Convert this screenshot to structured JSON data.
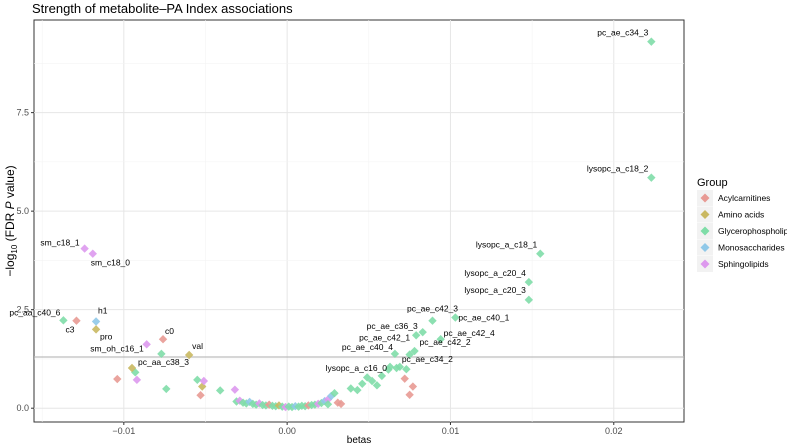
{
  "chart_data": {
    "type": "scatter",
    "title": "Strength of metabolite–PA Index associations",
    "xlabel": "betas",
    "ylabel_prefix": "−log",
    "ylabel_sub": "10",
    "ylabel_mid": " (FDR ",
    "ylabel_italic": "P",
    "ylabel_suffix": " value)",
    "xlim": [
      -0.0155,
      0.0243
    ],
    "ylim": [
      -0.35,
      9.85
    ],
    "x_ticks": [
      -0.01,
      0.0,
      0.01,
      0.02
    ],
    "x_tick_labels": [
      "−0.01",
      "0.00",
      "0.01",
      "0.02"
    ],
    "y_ticks": [
      0.0,
      2.5,
      5.0,
      7.5
    ],
    "y_tick_labels": [
      "0.0",
      "2.5",
      "5.0",
      "7.5"
    ],
    "threshold_y": 1.3,
    "grid": true,
    "legend": {
      "title": "Group",
      "position": "right",
      "entries": [
        {
          "name": "Acylcarnitines",
          "color": "#E89A94"
        },
        {
          "name": "Amino acids",
          "color": "#C9B860"
        },
        {
          "name": "Glycerophospholipids",
          "color": "#7FDDA8"
        },
        {
          "name": "Monosaccharides",
          "color": "#8FC8E8"
        },
        {
          "name": "Sphingolipids",
          "color": "#DD99EE"
        }
      ]
    },
    "labeled_points": [
      {
        "label": "pc_ae_c34_3",
        "x": 0.0223,
        "y": 9.3,
        "group": "Glycerophospholipids"
      },
      {
        "label": "lysopc_a_c18_2",
        "x": 0.0223,
        "y": 5.85,
        "group": "Glycerophospholipids"
      },
      {
        "label": "lysopc_a_c18_1",
        "x": 0.0155,
        "y": 3.92,
        "group": "Glycerophospholipids"
      },
      {
        "label": "lysopc_a_c20_4",
        "x": 0.0148,
        "y": 3.2,
        "group": "Glycerophospholipids"
      },
      {
        "label": "lysopc_a_c20_3",
        "x": 0.0148,
        "y": 2.75,
        "group": "Glycerophospholipids"
      },
      {
        "label": "pc_ae_c42_3",
        "x": 0.0089,
        "y": 2.22,
        "group": "Glycerophospholipids"
      },
      {
        "label": "pc_ae_c40_1",
        "x": 0.0103,
        "y": 2.3,
        "group": "Glycerophospholipids"
      },
      {
        "label": "pc_ae_c36_3",
        "x": 0.0083,
        "y": 1.93,
        "group": "Glycerophospholipids"
      },
      {
        "label": "pc_ae_c42_4",
        "x": 0.0094,
        "y": 1.75,
        "group": "Glycerophospholipids"
      },
      {
        "label": "pc_ae_c42_1",
        "x": 0.0079,
        "y": 1.85,
        "group": "Glycerophospholipids"
      },
      {
        "label": "pc_ae_c42_2",
        "x": 0.0078,
        "y": 1.45,
        "group": "Glycerophospholipids"
      },
      {
        "label": "pc_ae_c40_4",
        "x": 0.0066,
        "y": 1.38,
        "group": "Glycerophospholipids"
      },
      {
        "label": "lysopc_a_c16_0",
        "x": 0.0063,
        "y": 1.05,
        "group": "Glycerophospholipids"
      },
      {
        "label": "pc_ae_c34_2",
        "x": 0.0069,
        "y": 1.05,
        "group": "Glycerophospholipids"
      },
      {
        "label": "sm_c18_1",
        "x": -0.0124,
        "y": 4.05,
        "group": "Sphingolipids"
      },
      {
        "label": "sm_c18_0",
        "x": -0.0119,
        "y": 3.92,
        "group": "Sphingolipids"
      },
      {
        "label": "pc_aa_c40_6",
        "x": -0.0137,
        "y": 2.23,
        "group": "Glycerophospholipids"
      },
      {
        "label": "h1",
        "x": -0.0117,
        "y": 2.2,
        "group": "Monosaccharides"
      },
      {
        "label": "c3",
        "x": -0.0129,
        "y": 2.22,
        "group": "Acylcarnitines"
      },
      {
        "label": "pro",
        "x": -0.0117,
        "y": 2.0,
        "group": "Amino acids"
      },
      {
        "label": "c0",
        "x": -0.0076,
        "y": 1.75,
        "group": "Acylcarnitines"
      },
      {
        "label": "sm_oh_c16_1",
        "x": -0.0086,
        "y": 1.62,
        "group": "Sphingolipids"
      },
      {
        "label": "val",
        "x": -0.006,
        "y": 1.35,
        "group": "Amino acids"
      },
      {
        "label": "pc_aa_c38_3",
        "x": -0.0095,
        "y": 1.02,
        "group": "Amino acids"
      }
    ],
    "points": [
      {
        "x": -0.0077,
        "y": 1.38,
        "group": "Glycerophospholipids"
      },
      {
        "x": -0.0104,
        "y": 0.74,
        "group": "Acylcarnitines"
      },
      {
        "x": -0.0092,
        "y": 0.72,
        "group": "Sphingolipids"
      },
      {
        "x": -0.0093,
        "y": 0.91,
        "group": "Glycerophospholipids"
      },
      {
        "x": -0.0074,
        "y": 0.49,
        "group": "Glycerophospholipids"
      },
      {
        "x": -0.0055,
        "y": 0.72,
        "group": "Glycerophospholipids"
      },
      {
        "x": -0.0052,
        "y": 0.55,
        "group": "Amino acids"
      },
      {
        "x": -0.0051,
        "y": 0.69,
        "group": "Sphingolipids"
      },
      {
        "x": -0.0053,
        "y": 0.33,
        "group": "Acylcarnitines"
      },
      {
        "x": -0.0041,
        "y": 0.45,
        "group": "Glycerophospholipids"
      },
      {
        "x": -0.0032,
        "y": 0.47,
        "group": "Sphingolipids"
      },
      {
        "x": -0.0031,
        "y": 0.17,
        "group": "Glycerophospholipids"
      },
      {
        "x": -0.0029,
        "y": 0.19,
        "group": "Sphingolipids"
      },
      {
        "x": -0.0027,
        "y": 0.14,
        "group": "Glycerophospholipids"
      },
      {
        "x": -0.0025,
        "y": 0.12,
        "group": "Glycerophospholipids"
      },
      {
        "x": -0.0023,
        "y": 0.16,
        "group": "Monosaccharides"
      },
      {
        "x": -0.0021,
        "y": 0.11,
        "group": "Glycerophospholipids"
      },
      {
        "x": -0.0019,
        "y": 0.09,
        "group": "Glycerophospholipids"
      },
      {
        "x": -0.0017,
        "y": 0.12,
        "group": "Sphingolipids"
      },
      {
        "x": -0.0015,
        "y": 0.08,
        "group": "Glycerophospholipids"
      },
      {
        "x": -0.0013,
        "y": 0.07,
        "group": "Glycerophospholipids"
      },
      {
        "x": -0.0011,
        "y": 0.09,
        "group": "Acylcarnitines"
      },
      {
        "x": -0.0009,
        "y": 0.06,
        "group": "Glycerophospholipids"
      },
      {
        "x": -0.0007,
        "y": 0.05,
        "group": "Glycerophospholipids"
      },
      {
        "x": -0.0005,
        "y": 0.07,
        "group": "Amino acids"
      },
      {
        "x": -0.0003,
        "y": 0.04,
        "group": "Glycerophospholipids"
      },
      {
        "x": -0.0001,
        "y": 0.03,
        "group": "Sphingolipids"
      },
      {
        "x": 0.0001,
        "y": 0.04,
        "group": "Glycerophospholipids"
      },
      {
        "x": 0.0003,
        "y": 0.03,
        "group": "Glycerophospholipids"
      },
      {
        "x": 0.0005,
        "y": 0.05,
        "group": "Monosaccharides"
      },
      {
        "x": 0.0007,
        "y": 0.04,
        "group": "Glycerophospholipids"
      },
      {
        "x": 0.0009,
        "y": 0.06,
        "group": "Glycerophospholipids"
      },
      {
        "x": 0.0011,
        "y": 0.05,
        "group": "Glycerophospholipids"
      },
      {
        "x": 0.0013,
        "y": 0.07,
        "group": "Acylcarnitines"
      },
      {
        "x": 0.0015,
        "y": 0.08,
        "group": "Glycerophospholipids"
      },
      {
        "x": 0.0017,
        "y": 0.09,
        "group": "Glycerophospholipids"
      },
      {
        "x": 0.0019,
        "y": 0.11,
        "group": "Sphingolipids"
      },
      {
        "x": 0.0021,
        "y": 0.13,
        "group": "Glycerophospholipids"
      },
      {
        "x": 0.0023,
        "y": 0.18,
        "group": "Monosaccharides"
      },
      {
        "x": 0.0025,
        "y": 0.22,
        "group": "Sphingolipids"
      },
      {
        "x": 0.0027,
        "y": 0.31,
        "group": "Monosaccharides"
      },
      {
        "x": 0.0029,
        "y": 0.38,
        "group": "Glycerophospholipids"
      },
      {
        "x": 0.0031,
        "y": 0.14,
        "group": "Acylcarnitines"
      },
      {
        "x": 0.0033,
        "y": 0.11,
        "group": "Acylcarnitines"
      },
      {
        "x": 0.0025,
        "y": 0.1,
        "group": "Glycerophospholipids"
      },
      {
        "x": 0.0039,
        "y": 0.5,
        "group": "Glycerophospholipids"
      },
      {
        "x": 0.0043,
        "y": 0.46,
        "group": "Glycerophospholipids"
      },
      {
        "x": 0.0046,
        "y": 0.62,
        "group": "Glycerophospholipids"
      },
      {
        "x": 0.0049,
        "y": 0.78,
        "group": "Glycerophospholipids"
      },
      {
        "x": 0.0052,
        "y": 0.69,
        "group": "Glycerophospholipids"
      },
      {
        "x": 0.0055,
        "y": 0.58,
        "group": "Glycerophospholipids"
      },
      {
        "x": 0.0058,
        "y": 0.82,
        "group": "Glycerophospholipids"
      },
      {
        "x": 0.0062,
        "y": 0.98,
        "group": "Glycerophospholipids"
      },
      {
        "x": 0.0067,
        "y": 1.02,
        "group": "Glycerophospholipids"
      },
      {
        "x": 0.0073,
        "y": 0.99,
        "group": "Glycerophospholipids"
      },
      {
        "x": 0.0075,
        "y": 1.36,
        "group": "Glycerophospholipids"
      },
      {
        "x": 0.0072,
        "y": 0.75,
        "group": "Acylcarnitines"
      },
      {
        "x": 0.0077,
        "y": 0.55,
        "group": "Acylcarnitines"
      },
      {
        "x": 0.0075,
        "y": 0.34,
        "group": "Acylcarnitines"
      }
    ]
  }
}
